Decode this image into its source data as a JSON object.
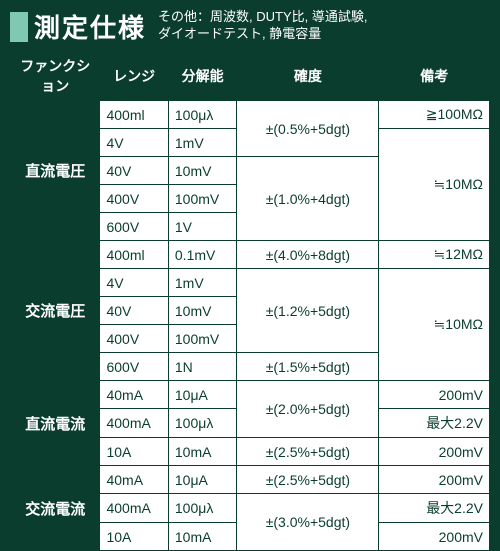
{
  "title": "測定仕様",
  "subtitle_l1": "その他：周波数, DUTY比, 導通試験,",
  "subtitle_l2": "ダイオードテスト, 静電容量",
  "headers": {
    "func": "ファンクション",
    "range": "レンジ",
    "res": "分解能",
    "acc": "確度",
    "note": "備考"
  },
  "funcs": {
    "dcv": "直流電圧",
    "acv": "交流電圧",
    "dci": "直流電流",
    "aci": "交流電流"
  },
  "dcv": {
    "r0": {
      "range": "400ml",
      "res": "100μλ",
      "note": "≧100MΩ"
    },
    "r1": {
      "range": "4V",
      "res": "1mV"
    },
    "r2": {
      "range": "40V",
      "res": "10mV"
    },
    "r3": {
      "range": "400V",
      "res": "100mV"
    },
    "r4": {
      "range": "600V",
      "res": "1V"
    },
    "acc1": "±(0.5%+5dgt)",
    "acc2": "±(1.0%+4dgt)",
    "note2": "≒10MΩ"
  },
  "acv": {
    "r0": {
      "range": "400ml",
      "res": "0.1mV"
    },
    "r1": {
      "range": "4V",
      "res": "1mV"
    },
    "r2": {
      "range": "40V",
      "res": "10mV"
    },
    "r3": {
      "range": "400V",
      "res": "100mV"
    },
    "r4": {
      "range": "600V",
      "res": "1N"
    },
    "acc0": "±(4.0%+8dgt)",
    "acc1": "±(1.2%+5dgt)",
    "acc2": "±(1.5%+5dgt)",
    "note0": "≒12MΩ",
    "note1": "≒10MΩ"
  },
  "dci": {
    "r0": {
      "range": "40mA",
      "res": "10μA",
      "note": "200mV"
    },
    "r1": {
      "range": "400mA",
      "res": "100μλ",
      "note": "最大2.2V"
    },
    "r2": {
      "range": "10A",
      "res": "10mA",
      "note": "200mV"
    },
    "acc0": "±(2.0%+5dgt)",
    "acc1": "±(2.5%+5dgt)"
  },
  "aci": {
    "r0": {
      "range": "40mA",
      "res": "10μA",
      "note": "200mV"
    },
    "r1": {
      "range": "400mA",
      "res": "100μλ",
      "note": "最大2.2V"
    },
    "r2": {
      "range": "10A",
      "res": "10mA",
      "note": "200mV"
    },
    "acc0": "±(2.5%+5dgt)",
    "acc1": "±(3.0%+5dgt)"
  }
}
